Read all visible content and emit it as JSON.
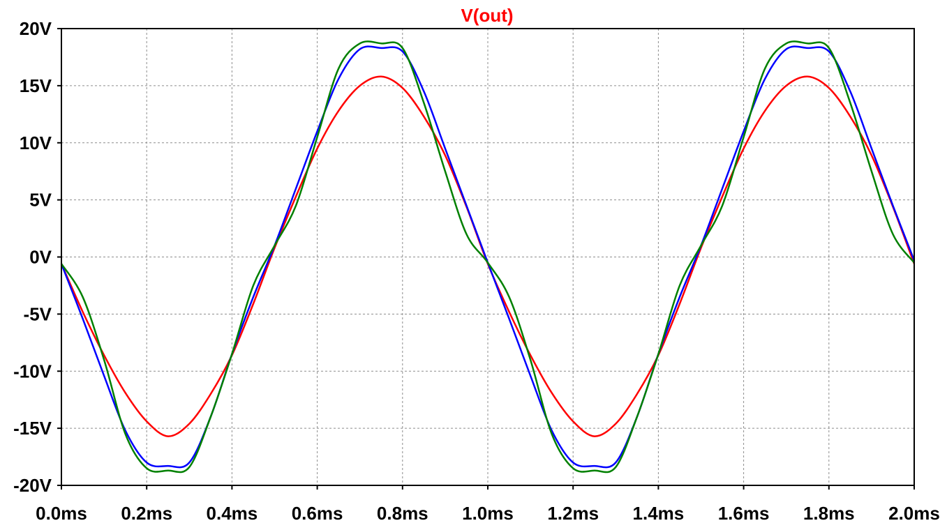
{
  "chart_data": {
    "type": "line",
    "title": "V(out)",
    "title_color": "#ff0000",
    "xlabel": "",
    "ylabel": "",
    "xlim": [
      0.0,
      2.0
    ],
    "ylim": [
      -20,
      20
    ],
    "grid": true,
    "x_ticks": [
      0.0,
      0.2,
      0.4,
      0.6,
      0.8,
      1.0,
      1.2,
      1.4,
      1.6,
      1.8,
      2.0
    ],
    "x_tick_labels": [
      "0.0ms",
      "0.2ms",
      "0.4ms",
      "0.6ms",
      "0.8ms",
      "1.0ms",
      "1.2ms",
      "1.4ms",
      "1.6ms",
      "1.8ms",
      "2.0ms"
    ],
    "y_ticks": [
      20,
      15,
      10,
      5,
      0,
      -5,
      -10,
      -15,
      -20
    ],
    "y_tick_labels": [
      "20V",
      "15V",
      "10V",
      "5V",
      "0V",
      "-5V",
      "-10V",
      "-15V",
      "-20V"
    ],
    "series": [
      {
        "color": "#ff0000",
        "x": [
          0.0,
          0.05,
          0.1,
          0.15,
          0.2,
          0.25,
          0.3,
          0.35,
          0.4,
          0.45,
          0.5,
          0.55,
          0.6,
          0.65,
          0.7,
          0.75,
          0.8,
          0.85,
          0.9,
          0.95,
          1.0,
          1.05,
          1.1,
          1.15,
          1.2,
          1.25,
          1.3,
          1.35,
          1.4,
          1.45,
          1.5,
          1.55,
          1.6,
          1.65,
          1.7,
          1.75,
          1.8,
          1.85,
          1.9,
          1.95,
          2.0
        ],
        "values": [
          -0.6,
          -4.8,
          -8.6,
          -11.9,
          -14.4,
          -15.7,
          -14.6,
          -12.0,
          -8.6,
          -4.1,
          0.8,
          5.3,
          9.5,
          12.8,
          15.0,
          15.8,
          14.8,
          12.3,
          8.9,
          4.4,
          -0.6,
          -4.8,
          -8.6,
          -11.9,
          -14.4,
          -15.7,
          -14.6,
          -12.0,
          -8.6,
          -4.1,
          0.8,
          5.3,
          9.5,
          12.8,
          15.0,
          15.8,
          14.8,
          12.3,
          8.9,
          4.4,
          -0.6
        ]
      },
      {
        "color": "#0000ff",
        "x": [
          0.0,
          0.05,
          0.1,
          0.15,
          0.2,
          0.25,
          0.3,
          0.35,
          0.4,
          0.45,
          0.5,
          0.55,
          0.6,
          0.65,
          0.7,
          0.75,
          0.8,
          0.85,
          0.9,
          0.95,
          1.0,
          1.05,
          1.1,
          1.15,
          1.2,
          1.25,
          1.3,
          1.35,
          1.4,
          1.45,
          1.5,
          1.55,
          1.6,
          1.65,
          1.7,
          1.75,
          1.8,
          1.85,
          1.9,
          1.95,
          2.0
        ],
        "values": [
          -0.6,
          -5.4,
          -10.4,
          -15.2,
          -18.0,
          -18.3,
          -18.0,
          -14.0,
          -8.5,
          -3.5,
          1.0,
          6.0,
          11.0,
          15.6,
          18.2,
          18.3,
          18.0,
          14.5,
          9.5,
          4.5,
          -0.5,
          -5.4,
          -10.4,
          -15.2,
          -18.0,
          -18.3,
          -18.0,
          -14.0,
          -8.5,
          -3.5,
          1.0,
          6.0,
          11.0,
          15.6,
          18.2,
          18.3,
          18.0,
          14.5,
          9.5,
          4.5,
          -0.3
        ]
      },
      {
        "color": "#008000",
        "x": [
          0.0,
          0.05,
          0.1,
          0.15,
          0.2,
          0.25,
          0.3,
          0.35,
          0.4,
          0.45,
          0.5,
          0.55,
          0.6,
          0.65,
          0.7,
          0.75,
          0.8,
          0.85,
          0.9,
          0.95,
          1.0,
          1.05,
          1.1,
          1.15,
          1.2,
          1.25,
          1.3,
          1.35,
          1.4,
          1.45,
          1.5,
          1.55,
          1.6,
          1.65,
          1.7,
          1.75,
          1.8,
          1.85,
          1.9,
          1.95,
          2.0
        ],
        "values": [
          -0.6,
          -3.5,
          -9.0,
          -15.5,
          -18.5,
          -18.7,
          -18.4,
          -14.0,
          -8.5,
          -2.5,
          1.0,
          4.5,
          10.5,
          16.5,
          18.7,
          18.7,
          18.3,
          13.5,
          7.5,
          2.0,
          -0.5,
          -3.5,
          -9.0,
          -15.5,
          -18.5,
          -18.7,
          -18.4,
          -14.0,
          -8.5,
          -2.5,
          1.0,
          4.5,
          10.5,
          16.5,
          18.7,
          18.7,
          18.3,
          13.5,
          7.5,
          2.0,
          -0.5
        ]
      }
    ]
  }
}
